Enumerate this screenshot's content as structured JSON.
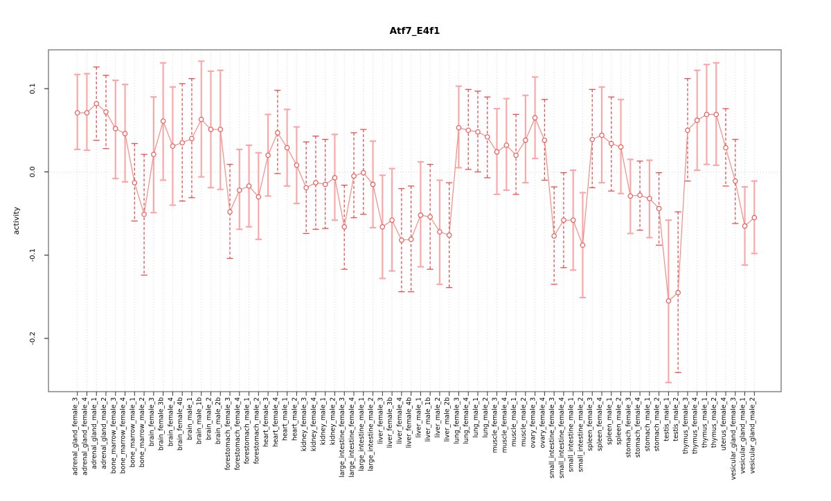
{
  "chart_data": {
    "type": "line",
    "title": "Atf7_E4f1",
    "ylabel": "activity",
    "xlabel": "",
    "ylim": [
      -0.264,
      0.146
    ],
    "grid": "vertical-dotted-per-sample, horizontal-dotted-at-zero",
    "legend": "none",
    "yticks": [
      {
        "label": "0.1",
        "value": 0.1
      },
      {
        "label": "0.0",
        "value": 0.0
      },
      {
        "label": "-0.1",
        "value": -0.1
      },
      {
        "label": "-0.2",
        "value": -0.2
      }
    ],
    "colors": {
      "solid_bar": "#ffa3a3",
      "dashed_bar": "#ee4b4b",
      "line": "#f98a80",
      "marker": "#ef5350",
      "grid": "#d8d8d8",
      "box": "#8c8c8c",
      "tick": "#333333",
      "text": "#000000"
    },
    "samples": [
      {
        "name": "adrenal_gland_female_3",
        "value": 0.071,
        "lo": 0.027,
        "hi": 0.117,
        "bar": "solid"
      },
      {
        "name": "adrenal_gland_female_4",
        "value": 0.071,
        "lo": 0.026,
        "hi": 0.118,
        "bar": "solid"
      },
      {
        "name": "adrenal_gland_male_1",
        "value": 0.082,
        "lo": 0.038,
        "hi": 0.126,
        "bar": "dashed"
      },
      {
        "name": "adrenal_gland_male_2",
        "value": 0.072,
        "lo": 0.028,
        "hi": 0.116,
        "bar": "dashed"
      },
      {
        "name": "bone_marrow_female_3",
        "value": 0.052,
        "lo": -0.008,
        "hi": 0.11,
        "bar": "solid"
      },
      {
        "name": "bone_marrow_female_4",
        "value": 0.046,
        "lo": -0.012,
        "hi": 0.105,
        "bar": "solid"
      },
      {
        "name": "bone_marrow_male_1",
        "value": -0.013,
        "lo": -0.059,
        "hi": 0.034,
        "bar": "dashed"
      },
      {
        "name": "bone_marrow_male_2",
        "value": -0.051,
        "lo": -0.124,
        "hi": 0.021,
        "bar": "dashed"
      },
      {
        "name": "brain_female_3",
        "value": 0.021,
        "lo": -0.049,
        "hi": 0.09,
        "bar": "solid"
      },
      {
        "name": "brain_female_3b",
        "value": 0.061,
        "lo": -0.01,
        "hi": 0.131,
        "bar": "solid"
      },
      {
        "name": "brain_female_4",
        "value": 0.031,
        "lo": -0.04,
        "hi": 0.102,
        "bar": "solid"
      },
      {
        "name": "brain_female_4b",
        "value": 0.035,
        "lo": -0.035,
        "hi": 0.106,
        "bar": "dashed"
      },
      {
        "name": "brain_male_1",
        "value": 0.04,
        "lo": -0.031,
        "hi": 0.112,
        "bar": "dashed"
      },
      {
        "name": "brain_male_1b",
        "value": 0.063,
        "lo": -0.006,
        "hi": 0.133,
        "bar": "solid"
      },
      {
        "name": "brain_male_2",
        "value": 0.051,
        "lo": -0.019,
        "hi": 0.121,
        "bar": "solid"
      },
      {
        "name": "brain_male_2b",
        "value": 0.051,
        "lo": -0.021,
        "hi": 0.122,
        "bar": "solid"
      },
      {
        "name": "forestomach_female_3",
        "value": -0.048,
        "lo": -0.104,
        "hi": 0.009,
        "bar": "dashed"
      },
      {
        "name": "forestomach_female_4",
        "value": -0.022,
        "lo": -0.069,
        "hi": 0.027,
        "bar": "solid"
      },
      {
        "name": "forestomach_male_1",
        "value": -0.017,
        "lo": -0.066,
        "hi": 0.032,
        "bar": "solid"
      },
      {
        "name": "forestomach_male_2",
        "value": -0.03,
        "lo": -0.081,
        "hi": 0.023,
        "bar": "solid"
      },
      {
        "name": "heart_female_3",
        "value": 0.02,
        "lo": -0.029,
        "hi": 0.069,
        "bar": "solid"
      },
      {
        "name": "heart_female_4",
        "value": 0.047,
        "lo": -0.002,
        "hi": 0.098,
        "bar": "dashed"
      },
      {
        "name": "heart_male_1",
        "value": 0.029,
        "lo": -0.017,
        "hi": 0.075,
        "bar": "solid"
      },
      {
        "name": "heart_male_2",
        "value": 0.008,
        "lo": -0.038,
        "hi": 0.054,
        "bar": "solid"
      },
      {
        "name": "kidney_female_3",
        "value": -0.019,
        "lo": -0.074,
        "hi": 0.036,
        "bar": "dashed"
      },
      {
        "name": "kidney_female_4",
        "value": -0.013,
        "lo": -0.069,
        "hi": 0.043,
        "bar": "dashed"
      },
      {
        "name": "kidney_male_1",
        "value": -0.015,
        "lo": -0.068,
        "hi": 0.039,
        "bar": "dashed"
      },
      {
        "name": "kidney_male_2",
        "value": -0.007,
        "lo": -0.058,
        "hi": 0.045,
        "bar": "solid"
      },
      {
        "name": "large_intestine_female_3",
        "value": -0.066,
        "lo": -0.117,
        "hi": -0.016,
        "bar": "dashed"
      },
      {
        "name": "large_intestine_female_4",
        "value": -0.005,
        "lo": -0.055,
        "hi": 0.047,
        "bar": "dashed"
      },
      {
        "name": "large_intestine_male_1",
        "value": -0.001,
        "lo": -0.051,
        "hi": 0.051,
        "bar": "dashed"
      },
      {
        "name": "large_intestine_male_2",
        "value": -0.015,
        "lo": -0.067,
        "hi": 0.037,
        "bar": "solid"
      },
      {
        "name": "liver_female_3",
        "value": -0.066,
        "lo": -0.128,
        "hi": -0.004,
        "bar": "solid"
      },
      {
        "name": "liver_female_3b",
        "value": -0.058,
        "lo": -0.119,
        "hi": 0.004,
        "bar": "solid"
      },
      {
        "name": "liver_female_4",
        "value": -0.082,
        "lo": -0.144,
        "hi": -0.02,
        "bar": "dashed"
      },
      {
        "name": "liver_female_4b",
        "value": -0.081,
        "lo": -0.144,
        "hi": -0.017,
        "bar": "dashed"
      },
      {
        "name": "liver_male_1",
        "value": -0.052,
        "lo": -0.114,
        "hi": 0.012,
        "bar": "solid"
      },
      {
        "name": "liver_male_1b",
        "value": -0.054,
        "lo": -0.117,
        "hi": 0.009,
        "bar": "dashed"
      },
      {
        "name": "liver_male_2",
        "value": -0.072,
        "lo": -0.135,
        "hi": -0.01,
        "bar": "solid"
      },
      {
        "name": "liver_male_2b",
        "value": -0.076,
        "lo": -0.139,
        "hi": -0.013,
        "bar": "dashed"
      },
      {
        "name": "lung_female_3",
        "value": 0.053,
        "lo": 0.005,
        "hi": 0.103,
        "bar": "solid"
      },
      {
        "name": "lung_female_4",
        "value": 0.05,
        "lo": 0.003,
        "hi": 0.099,
        "bar": "dashed"
      },
      {
        "name": "lung_male_1",
        "value": 0.048,
        "lo": 0.0,
        "hi": 0.097,
        "bar": "dashed"
      },
      {
        "name": "lung_male_2",
        "value": 0.042,
        "lo": -0.007,
        "hi": 0.09,
        "bar": "dashed"
      },
      {
        "name": "muscle_female_3",
        "value": 0.024,
        "lo": -0.027,
        "hi": 0.076,
        "bar": "solid"
      },
      {
        "name": "muscle_female_4",
        "value": 0.032,
        "lo": -0.022,
        "hi": 0.088,
        "bar": "solid"
      },
      {
        "name": "muscle_male_1",
        "value": 0.02,
        "lo": -0.027,
        "hi": 0.069,
        "bar": "dashed"
      },
      {
        "name": "muscle_male_2",
        "value": 0.038,
        "lo": -0.013,
        "hi": 0.092,
        "bar": "solid"
      },
      {
        "name": "ovary_female_3",
        "value": 0.065,
        "lo": 0.016,
        "hi": 0.114,
        "bar": "solid"
      },
      {
        "name": "ovary_female_4",
        "value": 0.038,
        "lo": -0.01,
        "hi": 0.087,
        "bar": "dashed"
      },
      {
        "name": "small_intestine_female_3",
        "value": -0.077,
        "lo": -0.135,
        "hi": -0.018,
        "bar": "dashed"
      },
      {
        "name": "small_intestine_female_4",
        "value": -0.058,
        "lo": -0.115,
        "hi": -0.001,
        "bar": "dashed"
      },
      {
        "name": "small_intestine_male_1",
        "value": -0.058,
        "lo": -0.118,
        "hi": 0.002,
        "bar": "solid"
      },
      {
        "name": "small_intestine_male_2",
        "value": -0.088,
        "lo": -0.151,
        "hi": -0.025,
        "bar": "solid"
      },
      {
        "name": "spleen_female_3",
        "value": 0.039,
        "lo": -0.019,
        "hi": 0.099,
        "bar": "dashed"
      },
      {
        "name": "spleen_female_4",
        "value": 0.044,
        "lo": -0.013,
        "hi": 0.102,
        "bar": "solid"
      },
      {
        "name": "spleen_male_1",
        "value": 0.034,
        "lo": -0.023,
        "hi": 0.09,
        "bar": "dashed"
      },
      {
        "name": "spleen_male_2",
        "value": 0.03,
        "lo": -0.026,
        "hi": 0.087,
        "bar": "solid"
      },
      {
        "name": "stomach_female_3",
        "value": -0.029,
        "lo": -0.074,
        "hi": 0.015,
        "bar": "solid"
      },
      {
        "name": "stomach_female_4",
        "value": -0.028,
        "lo": -0.07,
        "hi": 0.013,
        "bar": "dashed"
      },
      {
        "name": "stomach_male_1",
        "value": -0.032,
        "lo": -0.079,
        "hi": 0.014,
        "bar": "solid"
      },
      {
        "name": "stomach_male_2",
        "value": -0.044,
        "lo": -0.088,
        "hi": -0.001,
        "bar": "dashed"
      },
      {
        "name": "testis_male_1",
        "value": -0.155,
        "lo": -0.253,
        "hi": -0.058,
        "bar": "solid"
      },
      {
        "name": "testis_male_2",
        "value": -0.145,
        "lo": -0.241,
        "hi": -0.048,
        "bar": "dashed"
      },
      {
        "name": "thymus_female_3",
        "value": 0.05,
        "lo": -0.011,
        "hi": 0.112,
        "bar": "dashed"
      },
      {
        "name": "thymus_female_4",
        "value": 0.062,
        "lo": 0.002,
        "hi": 0.122,
        "bar": "solid"
      },
      {
        "name": "thymus_male_1",
        "value": 0.069,
        "lo": 0.009,
        "hi": 0.129,
        "bar": "solid"
      },
      {
        "name": "thymus_male_2",
        "value": 0.069,
        "lo": 0.008,
        "hi": 0.131,
        "bar": "solid"
      },
      {
        "name": "uterus_female_4",
        "value": 0.029,
        "lo": -0.017,
        "hi": 0.076,
        "bar": "dashed"
      },
      {
        "name": "vesicular_gland_female_3",
        "value": -0.011,
        "lo": -0.062,
        "hi": 0.039,
        "bar": "dashed"
      },
      {
        "name": "vesicular_gland_male_1",
        "value": -0.065,
        "lo": -0.112,
        "hi": -0.018,
        "bar": "solid"
      },
      {
        "name": "vesicular_gland_male_2",
        "value": -0.055,
        "lo": -0.098,
        "hi": -0.011,
        "bar": "solid"
      }
    ]
  }
}
